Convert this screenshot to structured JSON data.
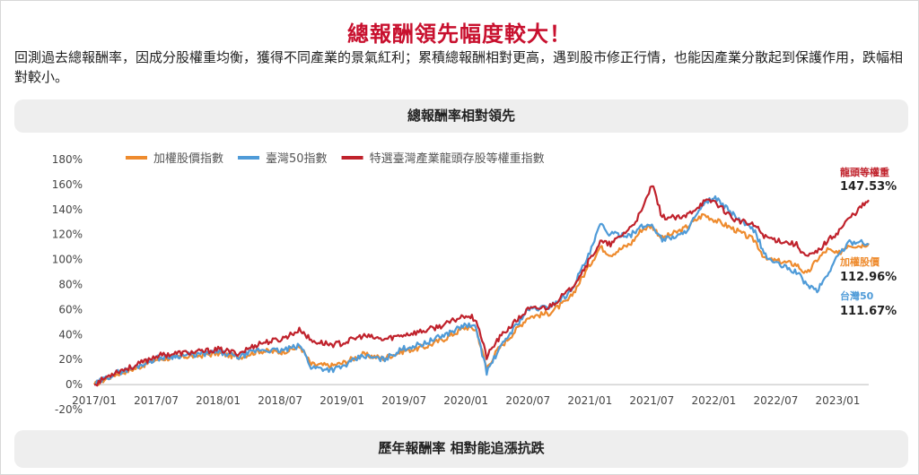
{
  "page": {
    "title": "總報酬領先幅度較大！",
    "description": "回測過去總報酬率，因成分股權重均衡，獲得不同產業的景氣紅利；累積總報酬相對更高，遇到股市修正行情，也能因產業分散起到保護作用，跌幅相對較小。",
    "chart_header": "總報酬率相對領先",
    "footer_header": "歷年報酬率 相對能追漲抗跌"
  },
  "chart_data": {
    "type": "line",
    "title": "",
    "xlabel": "",
    "ylabel": "",
    "ylim": [
      -20,
      180
    ],
    "yticks": [
      "180%",
      "160%",
      "140%",
      "120%",
      "100%",
      "80%",
      "60%",
      "40%",
      "20%",
      "0%",
      "-20%"
    ],
    "xlim": [
      "2017-01",
      "2023-04"
    ],
    "xticks": [
      "2017/01",
      "2017/07",
      "2018/01",
      "2018/07",
      "2019/01",
      "2019/07",
      "2020/01",
      "2020/07",
      "2021/01",
      "2021/07",
      "2022/01",
      "2022/07",
      "2023/01"
    ],
    "grid": false,
    "legend_position": "top-left",
    "x": [
      "2017-01",
      "2017-03",
      "2017-05",
      "2017-07",
      "2017-09",
      "2017-11",
      "2018-01",
      "2018-03",
      "2018-05",
      "2018-07",
      "2018-09",
      "2018-10",
      "2018-12",
      "2019-01",
      "2019-03",
      "2019-05",
      "2019-07",
      "2019-09",
      "2019-11",
      "2020-01",
      "2020-02",
      "2020-03",
      "2020-04",
      "2020-05",
      "2020-07",
      "2020-09",
      "2020-11",
      "2021-01",
      "2021-02",
      "2021-03",
      "2021-05",
      "2021-06",
      "2021-07",
      "2021-08",
      "2021-10",
      "2021-12",
      "2022-01",
      "2022-03",
      "2022-05",
      "2022-06",
      "2022-07",
      "2022-09",
      "2022-10",
      "2022-11",
      "2022-12",
      "2023-01",
      "2023-02",
      "2023-03",
      "2023-04"
    ],
    "series": [
      {
        "name": "加權股價指數",
        "color": "#ee8b2e",
        "values": [
          0,
          8,
          13,
          20,
          22,
          23,
          25,
          22,
          27,
          26,
          30,
          16,
          15,
          17,
          24,
          21,
          27,
          30,
          37,
          46,
          44,
          13,
          27,
          36,
          54,
          57,
          68,
          96,
          110,
          104,
          113,
          124,
          127,
          117,
          124,
          136,
          132,
          124,
          115,
          100,
          99,
          96,
          88,
          100,
          108,
          104,
          112,
          111,
          113
        ]
      },
      {
        "name": "臺灣50指數",
        "color": "#4f9bd8",
        "values": [
          0,
          9,
          14,
          21,
          23,
          24,
          26,
          22,
          28,
          27,
          31,
          14,
          12,
          14,
          23,
          20,
          29,
          33,
          40,
          48,
          45,
          10,
          25,
          38,
          60,
          62,
          73,
          105,
          128,
          120,
          120,
          126,
          128,
          116,
          120,
          143,
          150,
          135,
          122,
          103,
          97,
          90,
          80,
          75,
          88,
          103,
          113,
          115,
          112
        ]
      },
      {
        "name": "特選臺灣產業龍頭存股等權重指數",
        "color": "#c0222c",
        "values": [
          0,
          10,
          15,
          23,
          25,
          26,
          28,
          25,
          33,
          36,
          44,
          35,
          32,
          33,
          39,
          36,
          40,
          43,
          48,
          56,
          52,
          22,
          35,
          44,
          60,
          62,
          75,
          100,
          114,
          112,
          126,
          138,
          160,
          134,
          133,
          146,
          147,
          132,
          127,
          118,
          116,
          112,
          102,
          106,
          115,
          122,
          132,
          140,
          147.53
        ]
      }
    ],
    "annotations": [
      {
        "series": "特選臺灣產業龍頭存股等權重指數",
        "label": "龍頭等權重",
        "value": "147.53%",
        "color": "#c0222c"
      },
      {
        "series": "加權股價指數",
        "label": "加權股價",
        "value": "112.96%",
        "color": "#ee8b2e"
      },
      {
        "series": "臺灣50指數",
        "label": "台灣50",
        "value": "111.67%",
        "color": "#4f9bd8"
      }
    ]
  }
}
